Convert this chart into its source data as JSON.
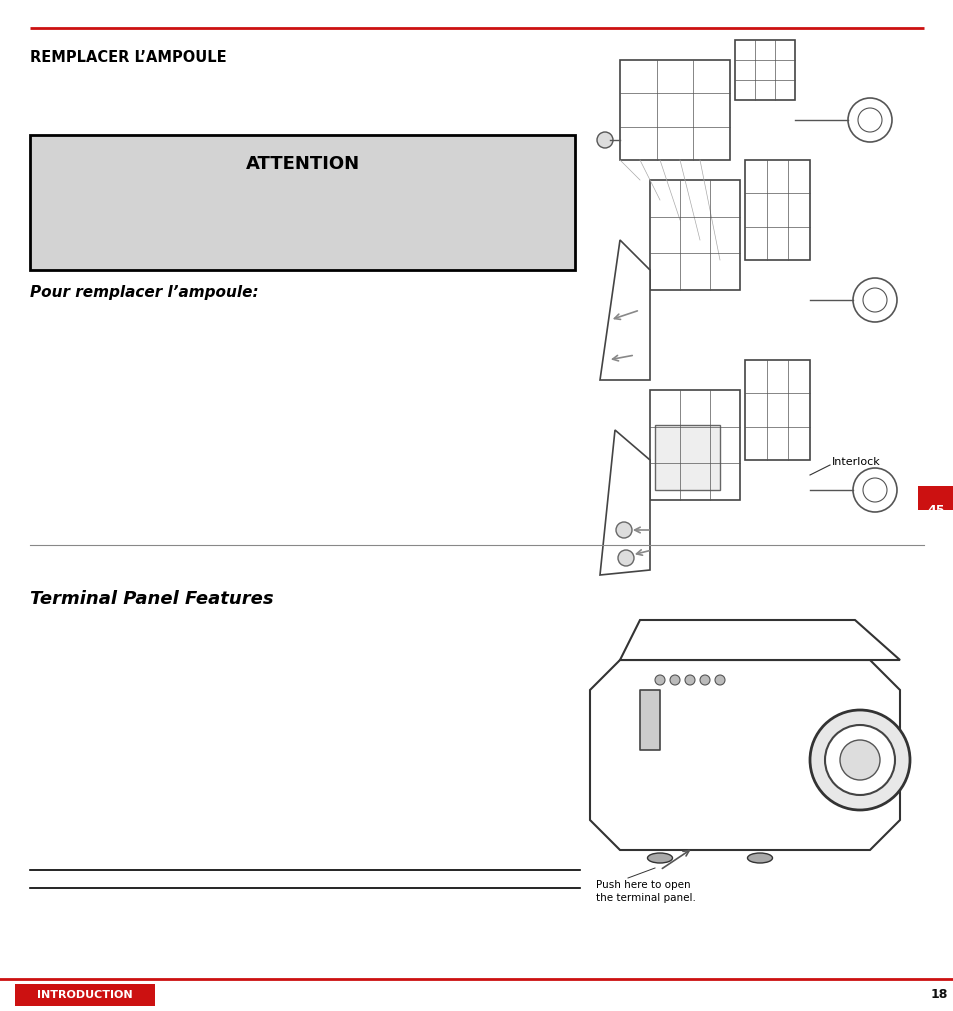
{
  "bg_color": "#ffffff",
  "red_color": "#cc1111",
  "dark_red": "#cc1111",
  "title_top": "REMPLACER L’AMPOULE",
  "attention_title": "ATTENTION",
  "pour_text": "Pour remplacer l’ampoule:",
  "terminal_title": "Terminal Panel Features",
  "footer_label": "INTRODUCTION",
  "page_number": "18",
  "page_45": "45",
  "interlock_label": "Interlock",
  "push_label": "Push here to open\nthe terminal panel.",
  "attention_box_color": "#d3d3d3",
  "attention_box_border": "#000000",
  "fig_width": 9.54,
  "fig_height": 10.11
}
